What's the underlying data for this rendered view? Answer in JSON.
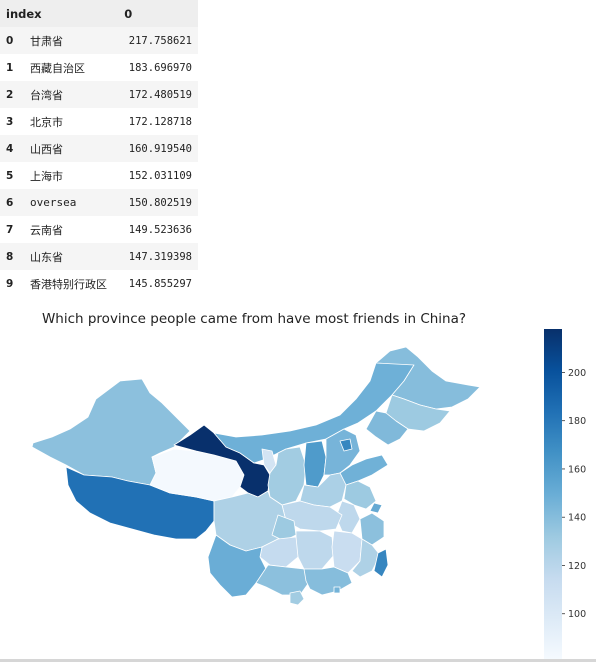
{
  "table": {
    "columns": [
      "index",
      "0"
    ],
    "rows": [
      {
        "index": "0",
        "name": "甘肃省",
        "value": "217.758621"
      },
      {
        "index": "1",
        "name": "西藏自治区",
        "value": "183.696970"
      },
      {
        "index": "2",
        "name": "台湾省",
        "value": "172.480519"
      },
      {
        "index": "3",
        "name": "北京市",
        "value": "172.128718"
      },
      {
        "index": "4",
        "name": "山西省",
        "value": "160.919540"
      },
      {
        "index": "5",
        "name": "上海市",
        "value": "152.031109"
      },
      {
        "index": "6",
        "name": "oversea",
        "value": "150.802519"
      },
      {
        "index": "7",
        "name": "云南省",
        "value": "149.523636"
      },
      {
        "index": "8",
        "name": "山东省",
        "value": "147.319398"
      },
      {
        "index": "9",
        "name": "香港特别行政区",
        "value": "145.855297"
      }
    ]
  },
  "chart_data": {
    "type": "choropleth",
    "title": "Which province people came from have most friends in China?",
    "colormap": "Blues",
    "colorbar": {
      "ticks": [
        200,
        180,
        160,
        140,
        120,
        100
      ],
      "range": [
        80,
        218
      ]
    },
    "regions": [
      {
        "name": "甘肃省",
        "value": 217.758621
      },
      {
        "name": "西藏自治区",
        "value": 183.69697
      },
      {
        "name": "台湾省",
        "value": 172.480519
      },
      {
        "name": "北京市",
        "value": 172.128718
      },
      {
        "name": "山西省",
        "value": 160.91954
      },
      {
        "name": "上海市",
        "value": 152.031109
      },
      {
        "name": "云南省",
        "value": 149.523636
      },
      {
        "name": "山东省",
        "value": 147.319398
      },
      {
        "name": "香港特别行政区",
        "value": 145.855297
      }
    ],
    "grid": false
  }
}
